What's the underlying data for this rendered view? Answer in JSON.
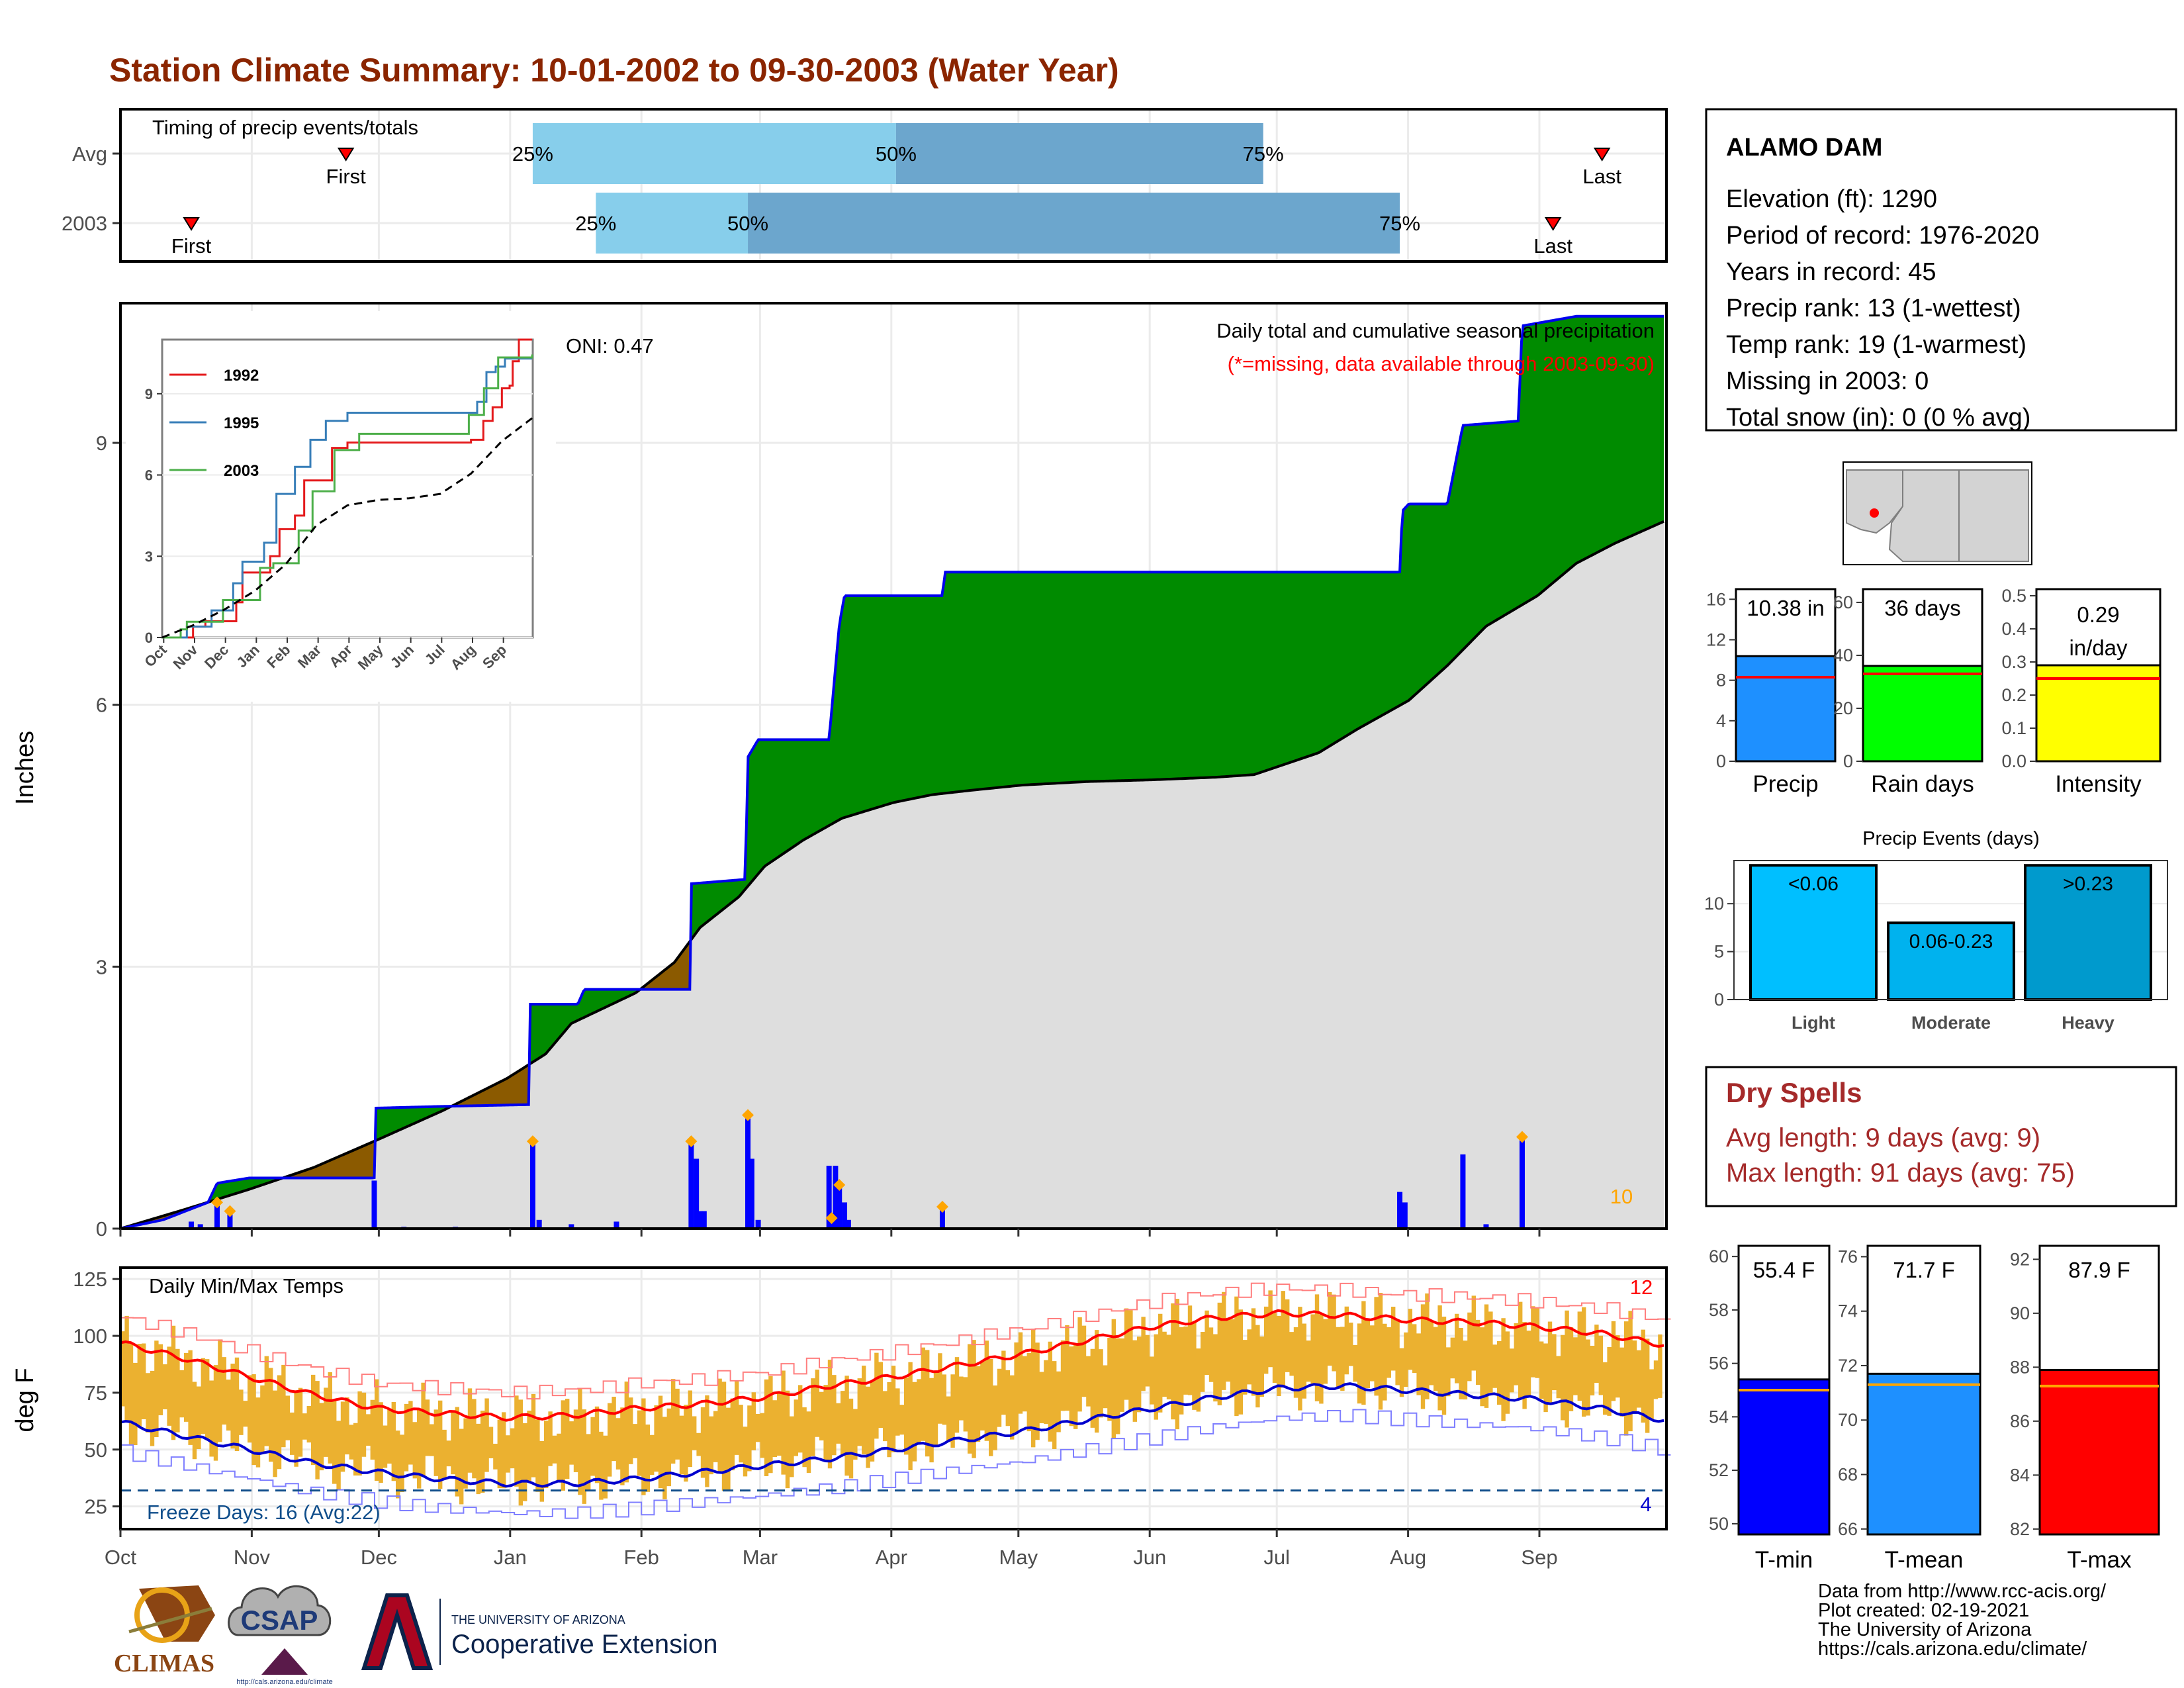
{
  "page": {
    "title": "Station Climate Summary: 10-01-2002 to 09-30-2003 (Water Year)",
    "title_color": "#8b2500"
  },
  "timing": {
    "heading": "Timing of precip events/totals",
    "rows": [
      {
        "label": "Avg",
        "first_label": "First",
        "last_label": "Last",
        "first_month": 1.75,
        "last_month": 11.5,
        "q25_label": "25%",
        "q50_label": "50%",
        "q75_label": "75%",
        "q25": 3.2,
        "q50": 6.02,
        "q75": 8.87
      },
      {
        "label": "2003",
        "first_label": "First",
        "last_label": "Last",
        "first_month": 0.55,
        "last_month": 11.12,
        "q25_label": "25%",
        "q50_label": "50%",
        "q75_label": "75%",
        "q25": 3.69,
        "q50": 4.87,
        "q75": 9.93
      }
    ],
    "colors": {
      "light": "#87ceeb",
      "dark": "#6ca6cd",
      "marker": "#ff0000"
    }
  },
  "months": [
    "Oct",
    "Nov",
    "Dec",
    "Jan",
    "Feb",
    "Mar",
    "Apr",
    "May",
    "Jun",
    "Jul",
    "Aug",
    "Sep"
  ],
  "precip": {
    "ylabel": "Inches",
    "yticks": [
      "0",
      "3",
      "6",
      "9"
    ],
    "title_line1": "Daily total and cumulative seasonal precipitation",
    "title_line2": "(*=missing, data available through 2003-09-30)",
    "oni": "ONI: 0.47",
    "count_label": "10",
    "colors": {
      "above": "#008b00",
      "below": "#8b5a00",
      "avg_fill": "#dedede",
      "line": "#0000ee",
      "bar": "#0000ff",
      "dot": "#ffa500"
    }
  },
  "chart_data": [
    {
      "type": "area",
      "name": "cumulative-precip",
      "x_unit": "month index (0 = Oct 1)",
      "ylim": [
        0,
        10.6
      ],
      "series": [
        {
          "name": "2003",
          "x": [
            0,
            0.33,
            0.68,
            0.75,
            1.0,
            1.5,
            1.97,
            1.98,
            2.5,
            3.17,
            3.18,
            3.55,
            3.6,
            4.0,
            4.42,
            4.43,
            4.85,
            4.87,
            4.95,
            5.5,
            5.58,
            5.62,
            6.0,
            6.38,
            6.4,
            7.0,
            8.0,
            9.0,
            9.93,
            9.95,
            10.0,
            10.3,
            10.42,
            10.85,
            10.88,
            11.3,
            11.98
          ],
          "y": [
            0,
            0.1,
            0.3,
            0.52,
            0.58,
            0.58,
            0.58,
            1.38,
            1.4,
            1.42,
            2.57,
            2.57,
            2.74,
            2.74,
            2.74,
            3.95,
            4.0,
            5.4,
            5.6,
            5.6,
            6.92,
            7.25,
            7.25,
            7.25,
            7.52,
            7.52,
            7.52,
            7.52,
            7.52,
            8.22,
            8.3,
            8.3,
            9.2,
            9.25,
            10.34,
            10.45,
            10.45
          ]
        },
        {
          "name": "Average",
          "x": [
            0,
            0.5,
            1.0,
            1.5,
            2.0,
            2.5,
            3.0,
            3.3,
            3.5,
            4.0,
            4.3,
            4.5,
            4.8,
            5.0,
            5.3,
            5.6,
            6.0,
            6.3,
            6.6,
            7.0,
            7.5,
            8.0,
            8.5,
            8.8,
            9.0,
            9.3,
            9.6,
            10.0,
            10.3,
            10.6,
            11.0,
            11.3,
            11.6,
            11.98
          ],
          "y": [
            0,
            0.22,
            0.45,
            0.7,
            1.02,
            1.35,
            1.72,
            2.0,
            2.35,
            2.7,
            3.05,
            3.45,
            3.8,
            4.15,
            4.45,
            4.7,
            4.88,
            4.97,
            5.02,
            5.08,
            5.12,
            5.14,
            5.17,
            5.2,
            5.3,
            5.45,
            5.72,
            6.05,
            6.45,
            6.9,
            7.25,
            7.62,
            7.85,
            8.1
          ]
        }
      ]
    },
    {
      "type": "bar",
      "name": "daily-precip",
      "x_unit": "month index",
      "x": [
        0.55,
        0.62,
        0.75,
        0.85,
        1.97,
        2.2,
        2.6,
        3.2,
        3.25,
        3.5,
        3.85,
        4.43,
        4.47,
        4.5,
        4.53,
        4.87,
        4.9,
        4.95,
        5.5,
        5.52,
        5.55,
        5.58,
        5.62,
        5.65,
        6.38,
        9.93,
        9.97,
        10.42,
        10.6,
        10.88
      ],
      "values": [
        0.08,
        0.05,
        0.3,
        0.2,
        0.55,
        0.02,
        0.02,
        1.0,
        0.1,
        0.05,
        0.08,
        1.0,
        0.8,
        0.2,
        0.2,
        1.3,
        0.8,
        0.1,
        0.72,
        0.12,
        0.72,
        0.5,
        0.3,
        0.1,
        0.25,
        0.42,
        0.3,
        0.85,
        0.05,
        1.05
      ],
      "dots_at": [
        0.75,
        0.85,
        3.2,
        4.43,
        4.87,
        5.52,
        5.58,
        6.38,
        10.88
      ]
    },
    {
      "type": "line",
      "name": "inset-cumulative",
      "xlim": [
        0,
        12
      ],
      "ylim": [
        0,
        11
      ],
      "yticks": [
        "0",
        "3",
        "6",
        "9"
      ],
      "xticks": [
        "Oct",
        "Nov",
        "Dec",
        "Jan",
        "Feb",
        "Mar",
        "Apr",
        "May",
        "Jun",
        "Jul",
        "Aug",
        "Sep"
      ],
      "series": [
        {
          "name": "1992",
          "color": "#e41a1c",
          "x": [
            0,
            1.0,
            1.4,
            2.4,
            2.6,
            3.5,
            3.8,
            4.3,
            4.6,
            5.5,
            6.0,
            10.0,
            10.4,
            10.7,
            11.0,
            11.25,
            11.35,
            11.55,
            11.6,
            11.98
          ],
          "y": [
            0,
            0.4,
            0.6,
            1.3,
            2.4,
            3.0,
            4.0,
            4.5,
            5.8,
            7.0,
            7.2,
            7.3,
            8.0,
            8.5,
            9.2,
            9.3,
            10.2,
            11.0,
            11.6,
            12.0
          ]
        },
        {
          "name": "1995",
          "color": "#377eb8",
          "x": [
            0,
            0.8,
            1.6,
            2.3,
            2.6,
            3.3,
            3.7,
            4.3,
            4.8,
            5.3,
            6.0,
            9.0,
            10.2,
            10.5,
            10.8,
            11.1,
            11.98
          ],
          "y": [
            0,
            0.4,
            1.0,
            2.0,
            2.8,
            3.5,
            5.3,
            6.3,
            7.3,
            8.0,
            8.3,
            8.3,
            8.7,
            9.8,
            10.0,
            10.3,
            10.3
          ]
        },
        {
          "name": "2003",
          "color": "#4daf4a",
          "x": [
            0,
            0.6,
            0.8,
            1.97,
            3.17,
            3.6,
            4.42,
            4.87,
            5.58,
            6.38,
            9.93,
            10.42,
            10.88,
            11.98
          ],
          "y": [
            0,
            0.3,
            0.58,
            1.38,
            2.57,
            2.74,
            3.95,
            5.4,
            6.92,
            7.52,
            8.22,
            9.2,
            10.34,
            10.45
          ]
        },
        {
          "name": "Average",
          "color": "#000000",
          "dashed": true,
          "x": [
            0,
            1.0,
            2.0,
            3.0,
            4.0,
            5.0,
            6.0,
            7.0,
            8.0,
            9.0,
            10.0,
            11.0,
            11.98
          ],
          "y": [
            0,
            0.45,
            1.02,
            1.72,
            2.7,
            4.15,
            4.88,
            5.08,
            5.14,
            5.3,
            6.05,
            7.25,
            8.1
          ]
        }
      ]
    },
    {
      "type": "line",
      "name": "daily-temps",
      "ylim": [
        15,
        130
      ],
      "yticks": [
        "25",
        "50",
        "75",
        "100",
        "125"
      ],
      "series": [
        {
          "name": "avg-max",
          "color": "#ff0000",
          "x": [
            0,
            0.5,
            1,
            1.5,
            2,
            2.5,
            3,
            3.5,
            4,
            4.5,
            5,
            5.5,
            6,
            6.5,
            7,
            7.5,
            8,
            8.5,
            9,
            9.5,
            10,
            10.5,
            11,
            11.5,
            11.98
          ],
          "y": [
            97,
            90,
            82,
            74,
            68,
            66,
            64,
            65,
            68,
            70,
            73,
            78,
            82,
            87,
            92,
            98,
            104,
            108,
            110,
            109,
            107,
            106,
            104,
            101,
            96
          ]
        },
        {
          "name": "avg-min",
          "color": "#0000cd",
          "x": [
            0,
            0.5,
            1,
            1.5,
            2,
            2.5,
            3,
            3.5,
            4,
            4.5,
            5,
            5.5,
            6,
            6.5,
            7,
            7.5,
            8,
            8.5,
            9,
            9.5,
            10,
            10.5,
            11,
            11.5,
            11.98
          ],
          "y": [
            62,
            56,
            50,
            44,
            40,
            37,
            35,
            35,
            37,
            40,
            43,
            46,
            50,
            54,
            58,
            63,
            68,
            73,
            77,
            78,
            76,
            74,
            72,
            68,
            63
          ]
        }
      ]
    },
    {
      "type": "bar",
      "name": "summary-precip",
      "categories": [
        "Precip",
        "Rain days",
        "Intensity"
      ],
      "values": [
        10.38,
        36,
        0.29
      ],
      "averages": [
        8.3,
        33,
        0.25
      ],
      "value_labels": [
        "10.38 in",
        "36 days",
        "0.29 in/day"
      ],
      "ymax": [
        17,
        65,
        0.52
      ],
      "yticks": [
        [
          "0",
          "4",
          "8",
          "12",
          "16"
        ],
        [
          "0",
          "20",
          "40",
          "60"
        ],
        [
          "0.0",
          "0.1",
          "0.2",
          "0.3",
          "0.4",
          "0.5"
        ]
      ],
      "colors": [
        "#1e90ff",
        "#00ff00",
        "#ffff00"
      ]
    },
    {
      "type": "bar",
      "name": "precip-events",
      "title": "Precip Events (days)",
      "categories": [
        "Light",
        "Moderate",
        "Heavy"
      ],
      "bar_labels": [
        "<0.06",
        "0.06-0.23",
        ">0.23"
      ],
      "values": [
        14,
        8,
        14
      ],
      "ylim": [
        0,
        14.5
      ],
      "yticks": [
        "0",
        "5",
        "10"
      ],
      "colors": [
        "#00bfff",
        "#00b2ee",
        "#009acd"
      ]
    },
    {
      "type": "bar",
      "name": "summary-temps",
      "categories": [
        "T-min",
        "T-mean",
        "T-max"
      ],
      "values": [
        55.4,
        71.7,
        87.9
      ],
      "averages": [
        55.0,
        71.3,
        87.3
      ],
      "value_labels": [
        "55.4 F",
        "71.7 F",
        "87.9 F"
      ],
      "ylims": [
        [
          49.6,
          60.4
        ],
        [
          65.8,
          76.4
        ],
        [
          81.8,
          92.5
        ]
      ],
      "yticks": [
        [
          "50",
          "52",
          "54",
          "56",
          "58",
          "60"
        ],
        [
          "66",
          "68",
          "70",
          "72",
          "74",
          "76"
        ],
        [
          "82",
          "84",
          "86",
          "88",
          "90",
          "92"
        ]
      ],
      "colors": [
        "#0000ff",
        "#1e90ff",
        "#ff0000"
      ]
    }
  ],
  "temps": {
    "ylabel": "deg F",
    "heading": "Daily Min/Max Temps",
    "freeze_label": "Freeze Days: 16 (Avg:22)",
    "count_hot": "12",
    "count_cold": "4",
    "colors": {
      "range": "#ebb130",
      "avg_max": "#ff0000",
      "avg_min": "#0000cd",
      "rec_max": "#ff7f7f",
      "rec_min": "#7f7fff",
      "freeze": "#104e8b"
    }
  },
  "station": {
    "name": "ALAMO DAM",
    "lines": [
      "Elevation (ft): 1290",
      "Period of record: 1976-2020",
      "Years in record: 45",
      "Precip rank: 13 (1-wettest)",
      "Temp rank: 19 (1-warmest)",
      "Missing in 2003: 0",
      "Total snow (in): 0 (0 % avg)"
    ]
  },
  "dry": {
    "title": "Dry Spells",
    "line1": "Avg length: 9 days (avg: 9)",
    "line2": "Max length: 91 days (avg: 75)",
    "color": "#a52a2a"
  },
  "logos": {
    "climas": "CLIMAS",
    "csap": "CSAP",
    "ua_line1": "THE UNIVERSITY OF ARIZONA",
    "ua_line2": "Cooperative Extension",
    "csap_url": "http://cals.arizona.edu/climate"
  },
  "credits": [
    "Data from http://www.rcc-acis.org/",
    "Plot created: 02-19-2021",
    "The University of Arizona",
    "https://cals.arizona.edu/climate/"
  ]
}
